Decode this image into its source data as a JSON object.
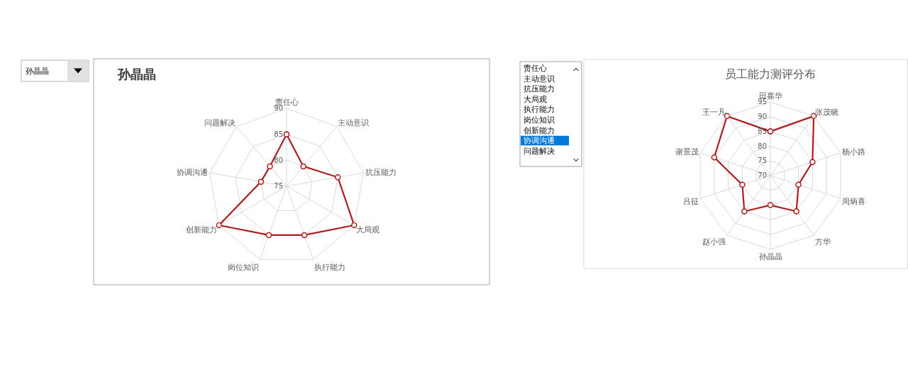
{
  "chart_data": [
    {
      "type": "other",
      "annotations": [
        "孙晶晶"
      ]
    },
    {
      "type": "radar",
      "title": "孙晶晶",
      "categories": [
        "责任心",
        "主动意识",
        "抗压能力",
        "大局观",
        "执行能力",
        "岗位知识",
        "创新能力",
        "协调沟通",
        "问题解决"
      ],
      "series": [
        {
          "color": "#b01c1c",
          "values": [
            85,
            80,
            85,
            90,
            85,
            85,
            90,
            80,
            80
          ]
        }
      ],
      "ylim": [
        75,
        90
      ],
      "yticks": [
        75,
        80,
        85,
        90
      ],
      "grid": true,
      "marker": "circle"
    },
    {
      "type": "other",
      "categories": [
        "责任心",
        "主动意识",
        "抗压能力",
        "大局观",
        "执行能力",
        "岗位知识",
        "创新能力",
        "协调沟通",
        "问题解决"
      ],
      "colors": [
        "#ffffff",
        "#ffffff",
        "#ffffff",
        "#ffffff",
        "#ffffff",
        "#ffffff",
        "#ffffff",
        "#0078d7",
        "#ffffff"
      ]
    },
    {
      "type": "radar",
      "title": "员工能力测评分布",
      "categories": [
        "田嘉华",
        "张茂晓",
        "杨小路",
        "周炳喜",
        "方华",
        "孙晶晶",
        "赵小强",
        "吕征",
        "谢景茂",
        "王一凡"
      ],
      "series": [
        {
          "color": "#b01c1c",
          "values": [
            85,
            95,
            85,
            80,
            85,
            80,
            85,
            80,
            90,
            95
          ]
        }
      ],
      "ylim": [
        70,
        95
      ],
      "yticks": [
        70,
        75,
        80,
        85,
        90,
        95
      ],
      "grid": true,
      "marker": "circle"
    }
  ]
}
